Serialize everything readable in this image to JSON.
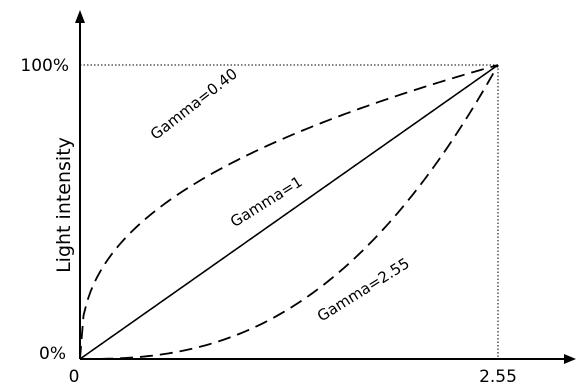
{
  "chart_data": {
    "type": "line",
    "title": "",
    "xlabel": "",
    "ylabel": "Light intensity",
    "x_ticks": [
      "0",
      "2.55"
    ],
    "y_ticks": [
      "0%",
      "100%"
    ],
    "xlim": [
      0,
      2.55
    ],
    "ylim": [
      0,
      100
    ],
    "grid": false,
    "legend": "none",
    "series": [
      {
        "name": "Gamma=0.40",
        "style": "dashed",
        "gamma": 0.4,
        "x": [
          0,
          0.1,
          0.25,
          0.5,
          0.75,
          1.0,
          1.25,
          1.5,
          1.75,
          2.0,
          2.25,
          2.55
        ],
        "y": [
          0,
          27,
          40,
          54,
          64,
          72,
          79,
          85,
          90,
          94,
          97,
          100
        ]
      },
      {
        "name": "Gamma=1",
        "style": "solid",
        "gamma": 1,
        "x": [
          0,
          2.55
        ],
        "y": [
          0,
          100
        ]
      },
      {
        "name": "Gamma=2.55",
        "style": "dashed",
        "gamma": 2.55,
        "x": [
          0,
          0.25,
          0.5,
          0.75,
          1.0,
          1.25,
          1.5,
          1.75,
          2.0,
          2.25,
          2.55
        ],
        "y": [
          0,
          0,
          2,
          4,
          9,
          16,
          26,
          38,
          54,
          73,
          100
        ]
      }
    ],
    "colors": {
      "line": "#000000",
      "axis": "#000000"
    }
  }
}
